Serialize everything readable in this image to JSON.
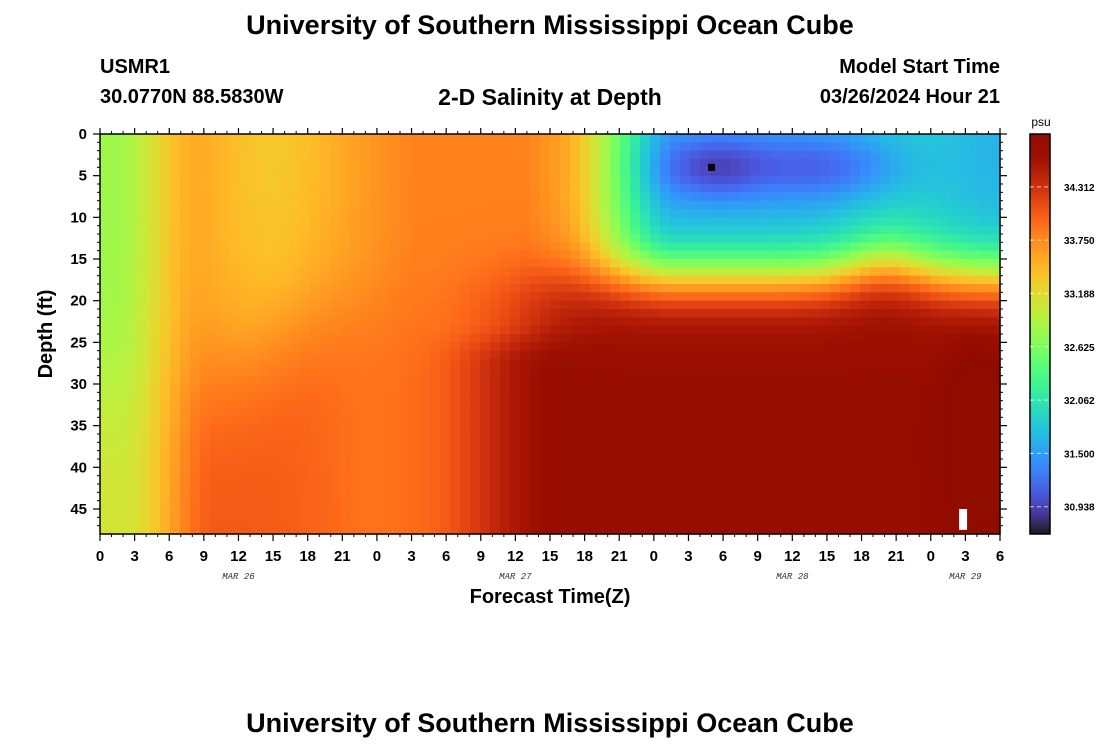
{
  "header": {
    "title": "University of Southern Mississippi Ocean Cube",
    "station": "USMR1",
    "coords": "30.0770N  88.5830W",
    "subtitle": "2-D Salinity at Depth",
    "model_label": "Model Start Time",
    "model_date": "03/26/2024 Hour 21"
  },
  "footer": {
    "title": "University of Southern Mississippi Ocean Cube"
  },
  "chart_data": {
    "type": "heatmap",
    "title": "2-D Salinity at Depth",
    "xlabel": "Forecast Time(Z)",
    "ylabel": "Depth (ft)",
    "x_ticks": [
      "0",
      "3",
      "6",
      "9",
      "12",
      "15",
      "18",
      "21",
      "0",
      "3",
      "6",
      "9",
      "12",
      "15",
      "18",
      "21",
      "0",
      "3",
      "6",
      "9",
      "12",
      "15",
      "18",
      "21",
      "0",
      "3",
      "6"
    ],
    "x_day_labels": [
      {
        "label": "MAR 26",
        "hour_index": 12
      },
      {
        "label": "MAR 27",
        "hour_index": 36
      },
      {
        "label": "MAR 28",
        "hour_index": 60
      },
      {
        "label": "MAR 29",
        "hour_index": 75
      }
    ],
    "x_range_hours": [
      0,
      78
    ],
    "y_ticks": [
      0,
      5,
      10,
      15,
      20,
      25,
      30,
      35,
      40,
      45
    ],
    "ylim": [
      0,
      48
    ],
    "colorbar": {
      "unit": "psu",
      "ticks": [
        "34.312",
        "33.750",
        "33.188",
        "32.625",
        "32.062",
        "31.500",
        "30.938"
      ],
      "range": [
        30.65,
        34.87
      ],
      "colormap": "turbo"
    },
    "markers": [
      {
        "type": "point",
        "hour": 53,
        "depth": 4
      },
      {
        "type": "bar",
        "hour": 74.8,
        "depth_top": 45,
        "depth_bottom": 47.5
      }
    ]
  }
}
